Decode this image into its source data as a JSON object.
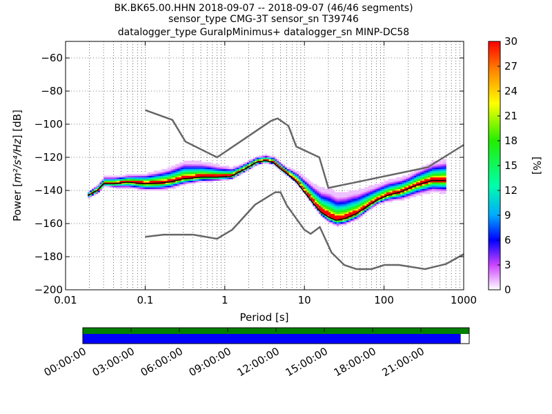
{
  "title_lines": [
    "BK.BK65.00.HHN   2018-09-07 -- 2018-09-07  (46/46 segments)",
    "sensor_type CMG-3T sensor_sn T39746",
    "datalogger_type GuralpMinimus+ datalogger_sn MINP-DC58"
  ],
  "chart_data": {
    "type": "heatmap",
    "xlabel": "Period [s]",
    "ylabel_prefix": "Power [",
    "ylabel_units": "m²/s⁴/Hz",
    "ylabel_suffix": "] [dB]",
    "xscale": "log",
    "xlim": [
      0.01,
      1000
    ],
    "ylim": [
      -200,
      -50
    ],
    "xticks": [
      0.01,
      0.1,
      1,
      10,
      100,
      1000
    ],
    "xtick_labels": [
      "0.01",
      "0.1",
      "1",
      "10",
      "100",
      "1000"
    ],
    "yticks": [
      -200,
      -180,
      -160,
      -140,
      -120,
      -100,
      -80,
      -60
    ],
    "ytick_labels": [
      "−200",
      "−180",
      "−160",
      "−140",
      "−120",
      "−100",
      "−80",
      "−60"
    ],
    "grid": true,
    "colorbar": {
      "label": "[%]",
      "range": [
        0,
        30
      ],
      "ticks": [
        0,
        3,
        6,
        9,
        12,
        15,
        18,
        21,
        24,
        27,
        30
      ],
      "tick_labels": [
        "0",
        "3",
        "6",
        "9",
        "12",
        "15",
        "18",
        "21",
        "24",
        "27",
        "30"
      ]
    },
    "nhnm": {
      "x": [
        0.1,
        0.22,
        0.32,
        0.8,
        3.8,
        4.6,
        6.3,
        7.9,
        15.4,
        20,
        354,
        1000
      ],
      "y": [
        -91.5,
        -97.4,
        -110.5,
        -120,
        -98,
        -96.5,
        -101,
        -113.5,
        -120,
        -138.5,
        -126,
        -112.5
      ]
    },
    "nlnm": {
      "x": [
        0.1,
        0.17,
        0.4,
        0.8,
        1.24,
        2.4,
        4.3,
        5,
        6,
        10,
        12,
        15.6,
        21.9,
        31.6,
        45,
        70,
        101,
        154,
        328,
        600,
        1000
      ],
      "y": [
        -168,
        -166.7,
        -166.7,
        -169.2,
        -163.7,
        -148.6,
        -141.1,
        -141.1,
        -149,
        -163.8,
        -166.2,
        -162.1,
        -177.5,
        -185,
        -187.5,
        -187.5,
        -185,
        -185,
        -187.5,
        -184.4,
        -178.5
      ]
    },
    "mode_curve": {
      "x": [
        0.019,
        0.025,
        0.03,
        0.04,
        0.06,
        0.1,
        0.15,
        0.2,
        0.3,
        0.5,
        0.8,
        1.2,
        1.8,
        2.5,
        3.2,
        4,
        5,
        6.5,
        8,
        10,
        13,
        16,
        20,
        25,
        32,
        45,
        60,
        80,
        110,
        160,
        250,
        400,
        600
      ],
      "y": [
        -143,
        -140,
        -136,
        -136,
        -135,
        -136,
        -135.5,
        -135,
        -133,
        -132,
        -132,
        -131.5,
        -127,
        -123,
        -122,
        -123,
        -127,
        -131,
        -135,
        -141,
        -148,
        -153,
        -156,
        -158,
        -157,
        -154,
        -150,
        -146,
        -143,
        -141,
        -137,
        -134,
        -134
      ]
    },
    "band_widths_db": {
      "x": [
        0.019,
        0.03,
        0.06,
        0.15,
        0.3,
        0.6,
        1.5,
        3,
        6,
        10,
        20,
        40,
        80,
        200,
        600
      ],
      "below": [
        2,
        2,
        4,
        5,
        4,
        3,
        2,
        2,
        2,
        2,
        4,
        4,
        3,
        6,
        8
      ],
      "above": [
        2,
        4,
        4,
        7,
        10,
        8,
        4,
        3,
        3,
        8,
        16,
        14,
        9,
        8,
        12
      ]
    }
  },
  "timeline": {
    "tick_labels": [
      "00:00:00",
      "03:00:00",
      "06:00:00",
      "09:00:00",
      "12:00:00",
      "15:00:00",
      "18:00:00",
      "21:00:00"
    ],
    "data_fraction": 1.0,
    "psd_fraction": 0.978,
    "data_color": "#008000",
    "psd_color": "#0000ff"
  }
}
